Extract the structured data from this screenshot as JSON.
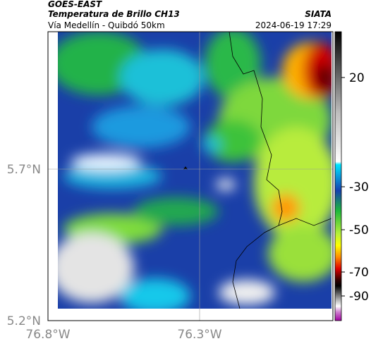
{
  "header": {
    "source": "GOES-EAST",
    "title": "Temperatura de Brillo CH13",
    "org": "SIATA",
    "subtitle": "Vía Medellín - Quibdó 50km",
    "datetime": "2024-06-19 17:29"
  },
  "axes": {
    "lat_labels": [
      "5.7°N",
      "5.2°N"
    ],
    "lon_labels": [
      "76.8°W",
      "76.3°W"
    ]
  },
  "colorbar": {
    "ticks": [
      20,
      -30,
      -50,
      -70,
      -90
    ]
  }
}
